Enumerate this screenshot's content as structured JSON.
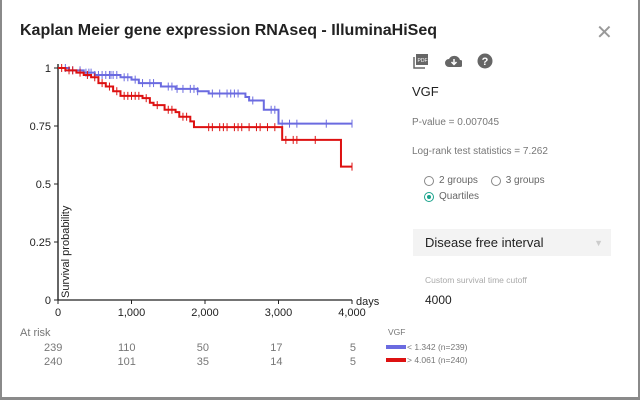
{
  "dialog": {
    "title": "Kaplan Meier gene expression RNAseq - IlluminaHiSeq",
    "close_icon": "close-icon"
  },
  "side": {
    "icons": [
      "pdf-icon",
      "cloud-download-icon",
      "help-icon"
    ],
    "gene": "VGF",
    "pvalue": "P-value = 0.007045",
    "logrank": "Log-rank test statistics = 7.262",
    "radios": [
      {
        "label": "2 groups",
        "checked": false
      },
      {
        "label": "3 groups",
        "checked": false
      },
      {
        "label": "Quartiles",
        "checked": true
      }
    ],
    "endpoint": "Disease free interval",
    "cutoff_label": "Custom survival time cutoff",
    "cutoff_value": "4000"
  },
  "chart_data": {
    "type": "line",
    "title": "",
    "xlabel": "days",
    "ylabel": "Survival probability",
    "xlim": [
      0,
      4000
    ],
    "ylim": [
      0,
      1
    ],
    "xticks": [
      "0",
      "1,000",
      "2,000",
      "3,000",
      "4,000"
    ],
    "yticks": [
      "0",
      "0.25",
      "0.5",
      "0.75",
      "1"
    ],
    "legend_title": "VGF",
    "series": [
      {
        "name": "< 1.342 (n=239)",
        "color": "#6b6be0",
        "steps": [
          [
            0,
            1
          ],
          [
            150,
            0.99
          ],
          [
            350,
            0.98
          ],
          [
            500,
            0.97
          ],
          [
            850,
            0.96
          ],
          [
            1000,
            0.95
          ],
          [
            1100,
            0.935
          ],
          [
            1400,
            0.92
          ],
          [
            1600,
            0.91
          ],
          [
            1900,
            0.9
          ],
          [
            2050,
            0.89
          ],
          [
            2550,
            0.875
          ],
          [
            2600,
            0.86
          ],
          [
            2800,
            0.82
          ],
          [
            3000,
            0.76
          ],
          [
            4000,
            0.76
          ]
        ],
        "censored": [
          100,
          200,
          300,
          380,
          420,
          450,
          500,
          550,
          600,
          650,
          700,
          720,
          750,
          800,
          900,
          950,
          1050,
          1150,
          1250,
          1300,
          1500,
          1550,
          1620,
          1700,
          1800,
          1850,
          1900,
          2100,
          2200,
          2300,
          2350,
          2400,
          2450,
          2650,
          2900,
          2950,
          3050,
          3150,
          3250,
          3650,
          4000
        ]
      },
      {
        "name": "> 4.061 (n=240)",
        "color": "#dd1111",
        "steps": [
          [
            0,
            1
          ],
          [
            100,
            0.99
          ],
          [
            250,
            0.98
          ],
          [
            350,
            0.97
          ],
          [
            450,
            0.96
          ],
          [
            550,
            0.935
          ],
          [
            650,
            0.92
          ],
          [
            750,
            0.9
          ],
          [
            850,
            0.88
          ],
          [
            1150,
            0.87
          ],
          [
            1250,
            0.85
          ],
          [
            1300,
            0.84
          ],
          [
            1450,
            0.82
          ],
          [
            1600,
            0.81
          ],
          [
            1650,
            0.79
          ],
          [
            1800,
            0.77
          ],
          [
            1850,
            0.745
          ],
          [
            3050,
            0.69
          ],
          [
            3850,
            0.575
          ],
          [
            4000,
            0.575
          ]
        ],
        "censored": [
          50,
          150,
          200,
          300,
          400,
          500,
          600,
          700,
          800,
          900,
          950,
          1000,
          1050,
          1100,
          1200,
          1350,
          1500,
          1550,
          1700,
          1750,
          2050,
          2100,
          2200,
          2250,
          2300,
          2400,
          2450,
          2500,
          2600,
          2700,
          2750,
          2850,
          2950,
          3100,
          3200,
          3250,
          3500,
          4000
        ]
      }
    ],
    "at_risk": {
      "label": "At risk",
      "rows": [
        [
          "239",
          "110",
          "50",
          "17",
          "5"
        ],
        [
          "240",
          "101",
          "35",
          "14",
          "5"
        ]
      ]
    }
  }
}
